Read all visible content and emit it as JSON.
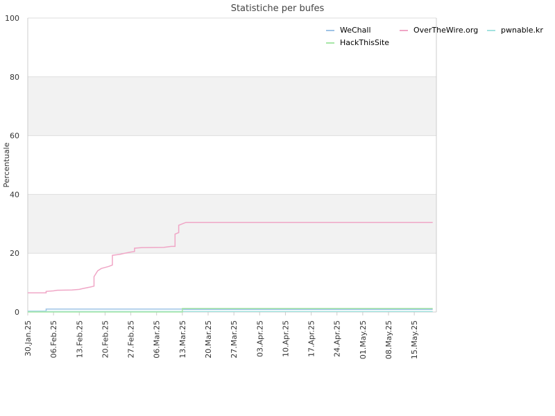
{
  "chart_data": {
    "type": "line",
    "title": "Statistiche per bufes",
    "xlabel": "",
    "ylabel": "Percentuale",
    "ylim": [
      0,
      100
    ],
    "yticks": [
      0,
      20,
      40,
      60,
      80,
      100
    ],
    "xlim": [
      "2025-01-30",
      "2025-05-21"
    ],
    "xticks": [
      "2025-01-30",
      "2025-02-06",
      "2025-02-13",
      "2025-02-20",
      "2025-02-27",
      "2025-03-06",
      "2025-03-13",
      "2025-03-20",
      "2025-03-27",
      "2025-04-03",
      "2025-04-10",
      "2025-04-17",
      "2025-04-24",
      "2025-05-01",
      "2025-05-08",
      "2025-05-15"
    ],
    "xtick_labels": [
      "30.Jan.25",
      "06.Feb.25",
      "13.Feb.25",
      "20.Feb.25",
      "27.Feb.25",
      "06.Mar.25",
      "13.Mar.25",
      "20.Mar.25",
      "27.Mar.25",
      "03.Apr.25",
      "10.Apr.25",
      "17.Apr.25",
      "24.Apr.25",
      "01.May.25",
      "08.May.25",
      "15.May.25"
    ],
    "grid": true,
    "alternating_bands": true,
    "legend_position": "top-right",
    "series": [
      {
        "name": "WeChall",
        "color": "#9ec3e6",
        "points": [
          [
            "2025-01-30",
            0.3
          ],
          [
            "2025-02-04",
            0.3
          ],
          [
            "2025-02-04",
            1.0
          ],
          [
            "2025-03-13",
            1.0
          ],
          [
            "2025-03-13",
            0.9
          ],
          [
            "2025-05-20",
            0.9
          ]
        ]
      },
      {
        "name": "OverTheWire.org",
        "color": "#f0a6c6",
        "points": [
          [
            "2025-01-30",
            6.5
          ],
          [
            "2025-02-04",
            6.5
          ],
          [
            "2025-02-04",
            7.0
          ],
          [
            "2025-02-06",
            7.2
          ],
          [
            "2025-02-07",
            7.4
          ],
          [
            "2025-02-11",
            7.5
          ],
          [
            "2025-02-13",
            7.7
          ],
          [
            "2025-02-14",
            8.0
          ],
          [
            "2025-02-16",
            8.5
          ],
          [
            "2025-02-17",
            8.8
          ],
          [
            "2025-02-17",
            12.0
          ],
          [
            "2025-02-18",
            14.0
          ],
          [
            "2025-02-19",
            14.8
          ],
          [
            "2025-02-21",
            15.5
          ],
          [
            "2025-02-22",
            16.0
          ],
          [
            "2025-02-22",
            19.3
          ],
          [
            "2025-02-24",
            19.6
          ],
          [
            "2025-02-25",
            19.9
          ],
          [
            "2025-02-27",
            20.4
          ],
          [
            "2025-02-28",
            20.6
          ],
          [
            "2025-02-28",
            21.7
          ],
          [
            "2025-03-02",
            21.9
          ],
          [
            "2025-03-08",
            22.0
          ],
          [
            "2025-03-10",
            22.3
          ],
          [
            "2025-03-11",
            22.3
          ],
          [
            "2025-03-11",
            26.5
          ],
          [
            "2025-03-12",
            27.0
          ],
          [
            "2025-03-12",
            29.5
          ],
          [
            "2025-03-13",
            30.0
          ],
          [
            "2025-03-14",
            30.5
          ],
          [
            "2025-05-20",
            30.5
          ]
        ]
      },
      {
        "name": "pwnable.kr",
        "color": "#a3e2df",
        "points": [
          [
            "2025-01-30",
            0.2
          ],
          [
            "2025-05-20",
            0.2
          ]
        ]
      },
      {
        "name": "HackThisSite",
        "color": "#a6e6a6",
        "points": [
          [
            "2025-01-30",
            0.0
          ],
          [
            "2025-03-13",
            0.0
          ],
          [
            "2025-03-13",
            1.2
          ],
          [
            "2025-05-20",
            1.2
          ]
        ]
      }
    ]
  },
  "colors": {
    "band": "#f2f2f2",
    "grid": "#dddddd",
    "axis": "#cccccc"
  }
}
